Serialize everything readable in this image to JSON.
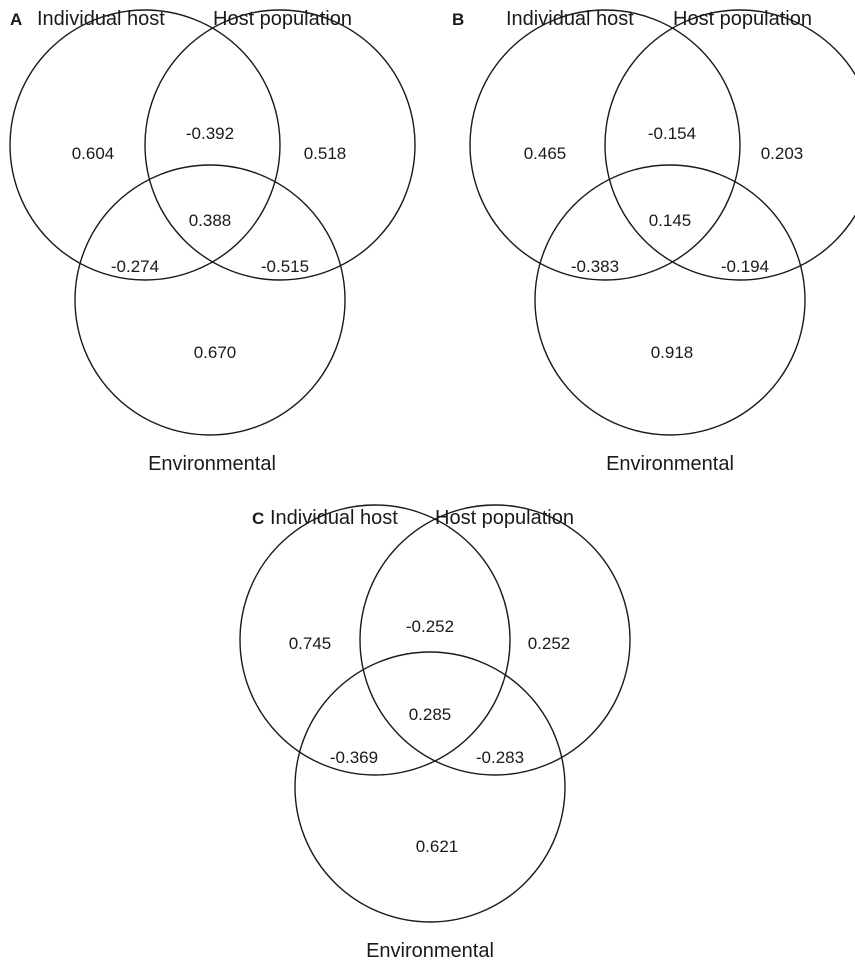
{
  "panels": [
    {
      "letter": "A",
      "labels": {
        "individual_host": "Individual host",
        "host_population": "Host population",
        "environmental": "Environmental"
      },
      "values": {
        "individual_only": "0.604",
        "population_only": "0.518",
        "environmental_only": "0.670",
        "individual_population": "-0.392",
        "individual_environmental": "-0.274",
        "population_environmental": "-0.515",
        "all_three": "0.388"
      }
    },
    {
      "letter": "B",
      "labels": {
        "individual_host": "Individual host",
        "host_population": "Host population",
        "environmental": "Environmental"
      },
      "values": {
        "individual_only": "0.465",
        "population_only": "0.203",
        "environmental_only": "0.918",
        "individual_population": "-0.154",
        "individual_environmental": "-0.383",
        "population_environmental": "-0.194",
        "all_three": "0.145"
      }
    },
    {
      "letter": "C",
      "labels": {
        "individual_host": "Individual host",
        "host_population": "Host population",
        "environmental": "Environmental"
      },
      "values": {
        "individual_only": "0.745",
        "population_only": "0.252",
        "environmental_only": "0.621",
        "individual_population": "-0.252",
        "individual_environmental": "-0.369",
        "population_environmental": "-0.283",
        "all_three": "0.285"
      }
    }
  ]
}
